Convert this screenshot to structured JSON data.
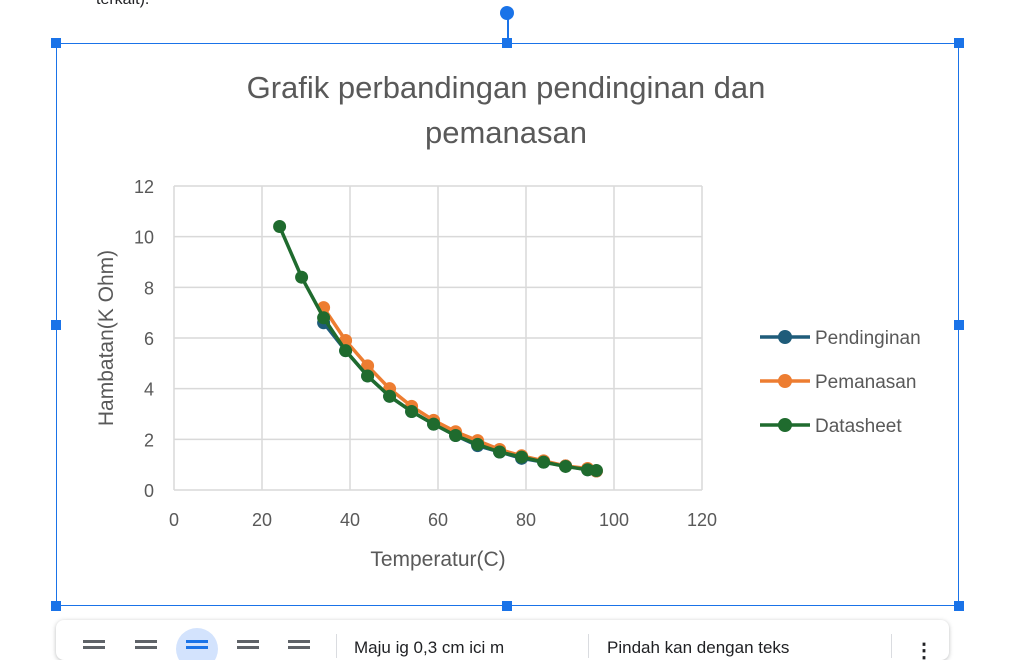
{
  "document": {
    "top_text": "terkait)."
  },
  "toolbar": {
    "wrap_options": [
      {
        "name": "inline",
        "icon": "wrap-inline-icon"
      },
      {
        "name": "wrap-text",
        "icon": "wrap-text-icon"
      },
      {
        "name": "break-text",
        "icon": "break-text-icon",
        "active": true
      },
      {
        "name": "behind-text",
        "icon": "behind-text-icon"
      },
      {
        "name": "in-front-of-text",
        "icon": "in-front-of-text-icon"
      }
    ],
    "position_label": "Maju ig 0,3 cm ici m",
    "move_label": "Pindah kan dengan teks",
    "more_icon": "more-vert-icon"
  },
  "chart_data": {
    "type": "line",
    "title": "Grafik perbandingan  pendinginan dan pemanasan",
    "xlabel": "Temperatur(C)",
    "ylabel": "Hambatan(K Ohm)",
    "xlim": [
      0,
      120
    ],
    "ylim": [
      0,
      12
    ],
    "xticks": [
      "0",
      "20",
      "40",
      "60",
      "80",
      "100",
      "120"
    ],
    "yticks": [
      "0",
      "2",
      "4",
      "6",
      "8",
      "10",
      "12"
    ],
    "grid": true,
    "legend_position": "right",
    "series": [
      {
        "name": "Pendinginan",
        "color": "#1f5c7a",
        "x": [
          34,
          39,
          44,
          49,
          54,
          59,
          64,
          69,
          74,
          79,
          84,
          89,
          94,
          96
        ],
        "y": [
          6.6,
          5.5,
          4.5,
          3.7,
          3.1,
          2.6,
          2.15,
          1.75,
          1.5,
          1.25,
          1.1,
          0.95,
          0.8,
          0.75
        ]
      },
      {
        "name": "Pemanasan",
        "color": "#ed7d31",
        "x": [
          34,
          39,
          44,
          49,
          54,
          59,
          64,
          69,
          74,
          79,
          84,
          89,
          94,
          96
        ],
        "y": [
          7.2,
          5.9,
          4.9,
          4.0,
          3.3,
          2.75,
          2.3,
          1.95,
          1.6,
          1.35,
          1.15,
          0.95,
          0.85,
          0.75
        ]
      },
      {
        "name": "Datasheet",
        "color": "#1f6b2e",
        "x": [
          24,
          29,
          34,
          39,
          44,
          49,
          54,
          59,
          64,
          69,
          74,
          79,
          84,
          89,
          94,
          96
        ],
        "y": [
          10.4,
          8.4,
          6.8,
          5.5,
          4.5,
          3.7,
          3.1,
          2.6,
          2.15,
          1.8,
          1.5,
          1.3,
          1.1,
          0.93,
          0.8,
          0.77
        ]
      }
    ]
  }
}
